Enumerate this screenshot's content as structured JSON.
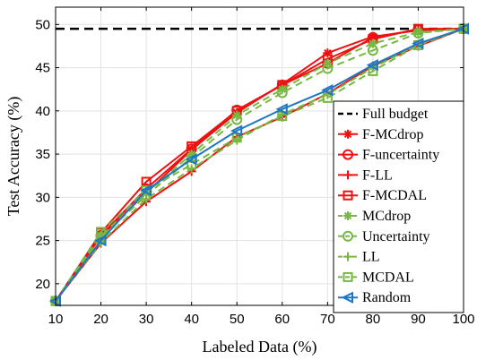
{
  "chart_data": {
    "type": "line",
    "xlabel": "Labeled Data (%)",
    "ylabel": "Test Accuracy (%)",
    "xlim": [
      10,
      100
    ],
    "ylim": [
      17.5,
      52
    ],
    "x": [
      10,
      20,
      30,
      40,
      50,
      60,
      70,
      80,
      90,
      100
    ],
    "xticks": [
      10,
      20,
      30,
      40,
      50,
      60,
      70,
      80,
      90,
      100
    ],
    "yticks": [
      20,
      25,
      30,
      35,
      40,
      45,
      50
    ],
    "grid": true,
    "legend_position": "bottom-right",
    "reference_line": {
      "name": "Full budget",
      "y": 49.5,
      "color": "#000000",
      "style": "dashed"
    },
    "series": [
      {
        "name": "F-MCdrop",
        "color": "#ee1111",
        "marker": "asterisk",
        "style": "solid",
        "values": [
          18,
          25.5,
          30.5,
          35.5,
          39.8,
          43.1,
          46.7,
          48.6,
          49.3,
          49.5
        ]
      },
      {
        "name": "F-uncertainty",
        "color": "#ee1111",
        "marker": "circle",
        "style": "solid",
        "values": [
          18,
          25.6,
          31.0,
          35.6,
          40.1,
          43.0,
          45.5,
          48.5,
          49.4,
          49.5
        ]
      },
      {
        "name": "F-LL",
        "color": "#ee1111",
        "marker": "plus",
        "style": "solid",
        "values": [
          18,
          24.7,
          29.5,
          33.0,
          37.0,
          39.3,
          42.0,
          45.2,
          47.5,
          49.5
        ]
      },
      {
        "name": "F-MCDAL",
        "color": "#ee1111",
        "marker": "square",
        "style": "solid",
        "values": [
          18,
          25.9,
          31.8,
          35.9,
          40.0,
          43.0,
          46.0,
          48.3,
          49.5,
          49.5
        ]
      },
      {
        "name": "MCdrop",
        "color": "#77b842",
        "marker": "asterisk",
        "style": "dashed",
        "values": [
          18,
          25.5,
          30.5,
          35.0,
          39.5,
          42.5,
          45.5,
          47.8,
          49.1,
          49.5
        ]
      },
      {
        "name": "Uncertainty",
        "color": "#77b842",
        "marker": "circle",
        "style": "dashed",
        "values": [
          18,
          25.4,
          30.2,
          34.6,
          39.0,
          42.1,
          44.9,
          47.0,
          49.0,
          49.5
        ]
      },
      {
        "name": "LL",
        "color": "#77b842",
        "marker": "plus",
        "style": "dashed",
        "values": [
          18,
          24.8,
          29.8,
          33.3,
          36.6,
          39.6,
          41.9,
          45.0,
          47.7,
          49.5
        ]
      },
      {
        "name": "MCDAL",
        "color": "#77b842",
        "marker": "square",
        "style": "dashed",
        "values": [
          18,
          26.0,
          30.8,
          33.8,
          36.9,
          39.4,
          41.5,
          44.6,
          47.6,
          49.5
        ]
      },
      {
        "name": "Random",
        "color": "#1f77c4",
        "marker": "triangle-left",
        "style": "solid",
        "values": [
          18,
          25.0,
          30.8,
          34.4,
          37.7,
          40.2,
          42.4,
          45.3,
          47.8,
          49.5
        ]
      }
    ]
  }
}
